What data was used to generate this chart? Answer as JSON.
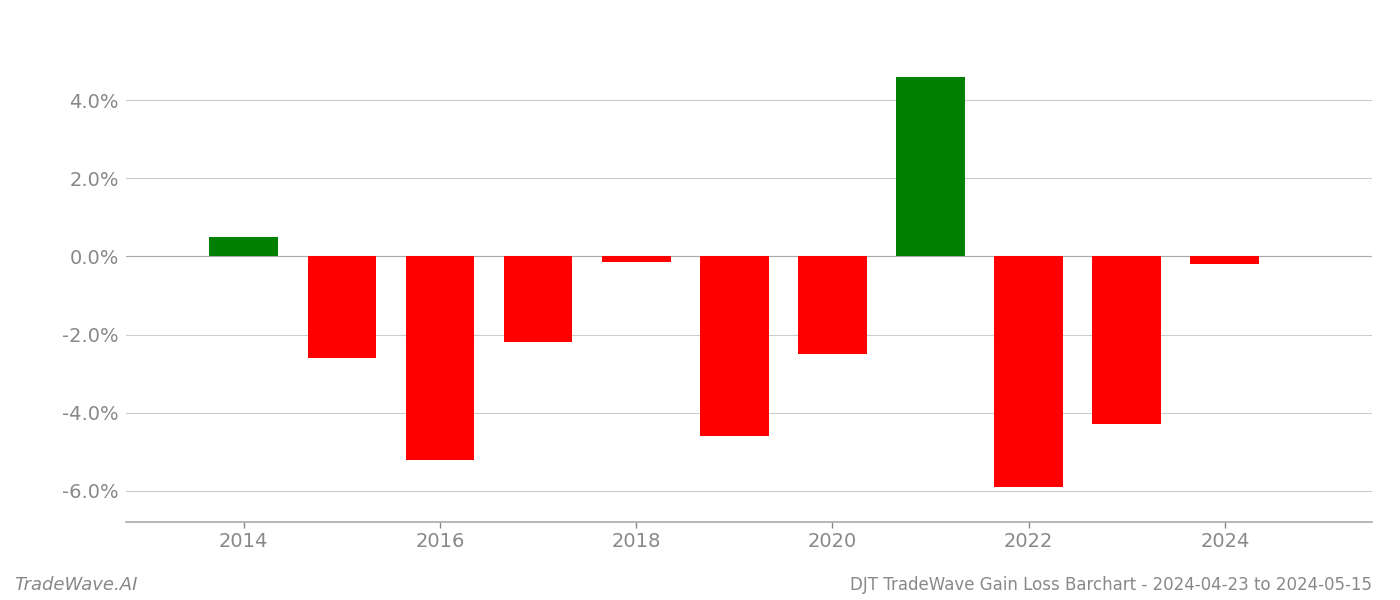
{
  "years": [
    2014,
    2015,
    2016,
    2017,
    2018,
    2019,
    2020,
    2021,
    2022,
    2023,
    2024
  ],
  "values": [
    0.005,
    -0.026,
    -0.052,
    -0.022,
    -0.0015,
    -0.046,
    -0.025,
    0.046,
    -0.059,
    -0.043,
    -0.002
  ],
  "bar_colors_positive": "#008000",
  "bar_colors_negative": "#ff0000",
  "title": "DJT TradeWave Gain Loss Barchart - 2024-04-23 to 2024-05-15",
  "watermark": "TradeWave.AI",
  "ylim_min": -0.068,
  "ylim_max": 0.058,
  "background_color": "#ffffff",
  "grid_color": "#cccccc",
  "axis_label_color": "#888888",
  "title_color": "#888888",
  "watermark_color": "#888888",
  "bar_width": 0.7,
  "tick_fontsize": 14,
  "title_fontsize": 12,
  "watermark_fontsize": 13
}
